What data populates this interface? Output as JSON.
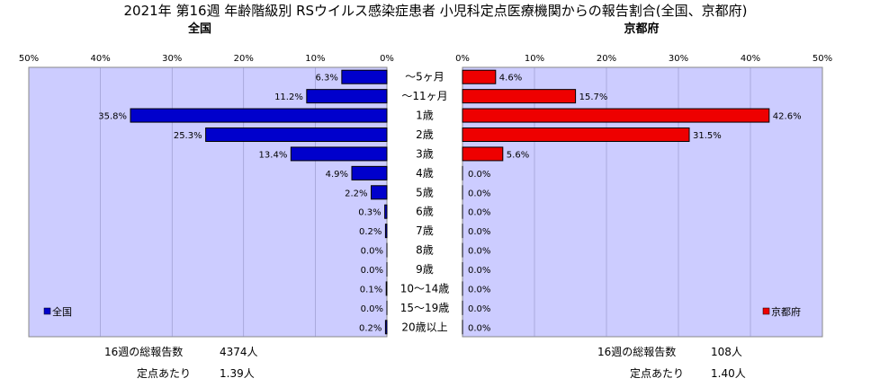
{
  "title": "2021年 第16週 年齢階級別 RSウイルス感染症患者 小児科定点医療機関からの報告割合(全国、京都府)",
  "chart_data": {
    "type": "bar",
    "orientation": "horizontal-butterfly",
    "categories": [
      "～5ヶ月",
      "～11ヶ月",
      "1歳",
      "2歳",
      "3歳",
      "4歳",
      "5歳",
      "6歳",
      "7歳",
      "8歳",
      "9歳",
      "10～14歳",
      "15～19歳",
      "20歳以上"
    ],
    "series": [
      {
        "name": "全国",
        "side": "left",
        "color": "#0000cc",
        "values": [
          6.3,
          11.2,
          35.8,
          25.3,
          13.4,
          4.9,
          2.2,
          0.3,
          0.2,
          0.0,
          0.0,
          0.1,
          0.0,
          0.2
        ],
        "labels": [
          "6.3%",
          "11.2%",
          "35.8%",
          "25.3%",
          "13.4%",
          "4.9%",
          "2.2%",
          "0.3%",
          "0.2%",
          "0.0%",
          "0.0%",
          "0.1%",
          "0.0%",
          "0.2%"
        ]
      },
      {
        "name": "京都府",
        "side": "right",
        "color": "#ee0000",
        "values": [
          4.6,
          15.7,
          42.6,
          31.5,
          5.6,
          0,
          0,
          0,
          0,
          0,
          0,
          0,
          0,
          0
        ],
        "labels": [
          "4.6%",
          "15.7%",
          "42.6%",
          "31.5%",
          "5.6%",
          "0.0%",
          "0.0%",
          "0.0%",
          "0.0%",
          "0.0%",
          "0.0%",
          "0.0%",
          "0.0%",
          "0.0%"
        ]
      }
    ],
    "xlim": [
      0,
      50
    ],
    "ticks_left": [
      "50%",
      "40%",
      "30%",
      "20%",
      "10%",
      "0%"
    ],
    "ticks_right": [
      "0%",
      "10%",
      "20%",
      "30%",
      "40%",
      "50%"
    ],
    "legend_placement": "bottom-inside",
    "plot_background": "#ccccff"
  },
  "panels": {
    "left": {
      "title": "全国",
      "total_label": "16週の総報告数",
      "total_value": "4374人",
      "per_label": "定点あたり",
      "per_value": "1.39人"
    },
    "right": {
      "title": "京都府",
      "total_label": "16週の総報告数",
      "total_value": "108人",
      "per_label": "定点あたり",
      "per_value": "1.40人"
    }
  }
}
